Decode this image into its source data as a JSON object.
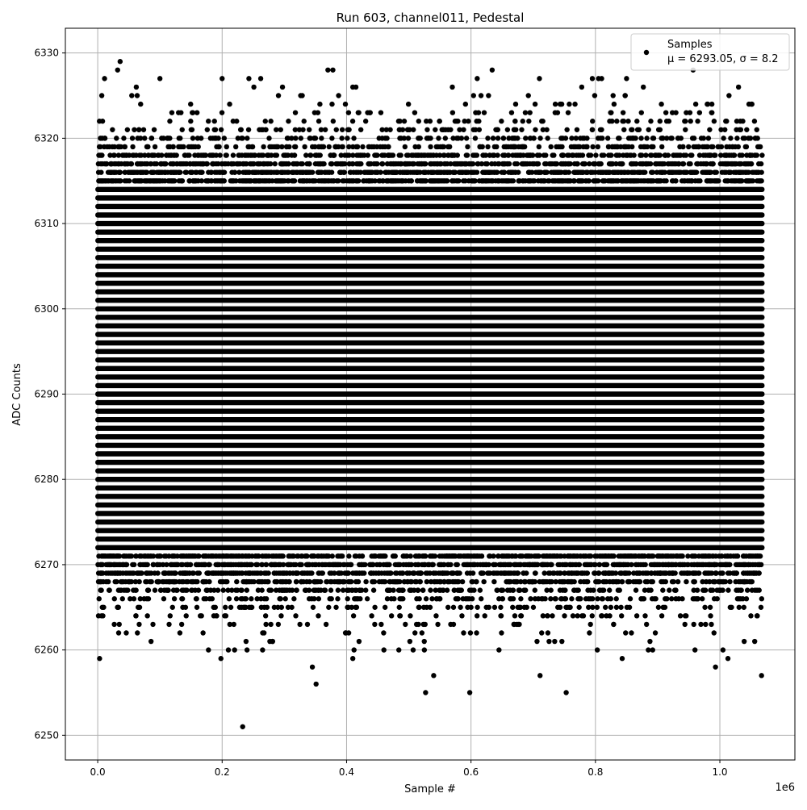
{
  "chart_data": {
    "type": "scatter",
    "title": "Run 603, channel011, Pedestal",
    "xlabel": "Sample #",
    "ylabel": "ADC Counts",
    "x_offset_label": "1e6",
    "xlim": [
      -52000,
      1120600
    ],
    "ylim": [
      6247.1,
      6332.9
    ],
    "x_ticks": [
      0,
      200000,
      400000,
      600000,
      800000,
      1000000
    ],
    "x_tick_labels": [
      "0.0",
      "0.2",
      "0.4",
      "0.6",
      "0.8",
      "1.0"
    ],
    "y_ticks": [
      6250,
      6260,
      6270,
      6280,
      6290,
      6300,
      6310,
      6320,
      6330
    ],
    "y_tick_labels": [
      "6250",
      "6260",
      "6270",
      "6280",
      "6290",
      "6300",
      "6310",
      "6320",
      "6330"
    ],
    "grid": true,
    "legend": {
      "placement": "top-right",
      "entries": [
        {
          "label": "Samples",
          "stats": "μ = 6293.05, σ = 8.2"
        }
      ]
    },
    "marker_color": "#000000",
    "series": [
      {
        "name": "Samples",
        "x_range": [
          0,
          1068000
        ],
        "mean": 6293.05,
        "sigma": 8.2,
        "integer_valued": true,
        "outliers": [
          [
            3000,
            6259
          ],
          [
            198000,
            6259
          ],
          [
            233000,
            6251
          ],
          [
            345000,
            6258
          ],
          [
            351000,
            6256
          ],
          [
            410000,
            6259
          ],
          [
            527000,
            6255
          ],
          [
            540000,
            6257
          ],
          [
            598000,
            6255
          ],
          [
            711000,
            6257
          ],
          [
            753000,
            6255
          ],
          [
            843000,
            6259
          ],
          [
            993000,
            6258
          ],
          [
            1013000,
            6259
          ],
          [
            1067000,
            6257
          ],
          [
            178000,
            6260
          ],
          [
            210000,
            6260
          ],
          [
            220000,
            6260
          ],
          [
            240000,
            6260
          ],
          [
            265000,
            6260
          ],
          [
            412000,
            6260
          ],
          [
            460000,
            6260
          ],
          [
            484000,
            6260
          ],
          [
            507000,
            6260
          ],
          [
            525000,
            6260
          ],
          [
            645000,
            6260
          ],
          [
            803000,
            6260
          ],
          [
            885000,
            6260
          ],
          [
            892000,
            6260
          ],
          [
            960000,
            6260
          ],
          [
            1005000,
            6260
          ],
          [
            36000,
            6329
          ],
          [
            32000,
            6328
          ],
          [
            11000,
            6327
          ],
          [
            100000,
            6327
          ],
          [
            200000,
            6327
          ],
          [
            243000,
            6327
          ],
          [
            262000,
            6327
          ],
          [
            370000,
            6328
          ],
          [
            378000,
            6328
          ],
          [
            610000,
            6327
          ],
          [
            634000,
            6328
          ],
          [
            710000,
            6327
          ],
          [
            795000,
            6327
          ],
          [
            805000,
            6327
          ],
          [
            810000,
            6327
          ],
          [
            850000,
            6327
          ],
          [
            957000,
            6328
          ],
          [
            62000,
            6326
          ],
          [
            251000,
            6326
          ],
          [
            297000,
            6326
          ],
          [
            410000,
            6326
          ],
          [
            415000,
            6326
          ],
          [
            570000,
            6326
          ],
          [
            778000,
            6326
          ],
          [
            877000,
            6326
          ],
          [
            1030000,
            6326
          ]
        ]
      }
    ]
  }
}
